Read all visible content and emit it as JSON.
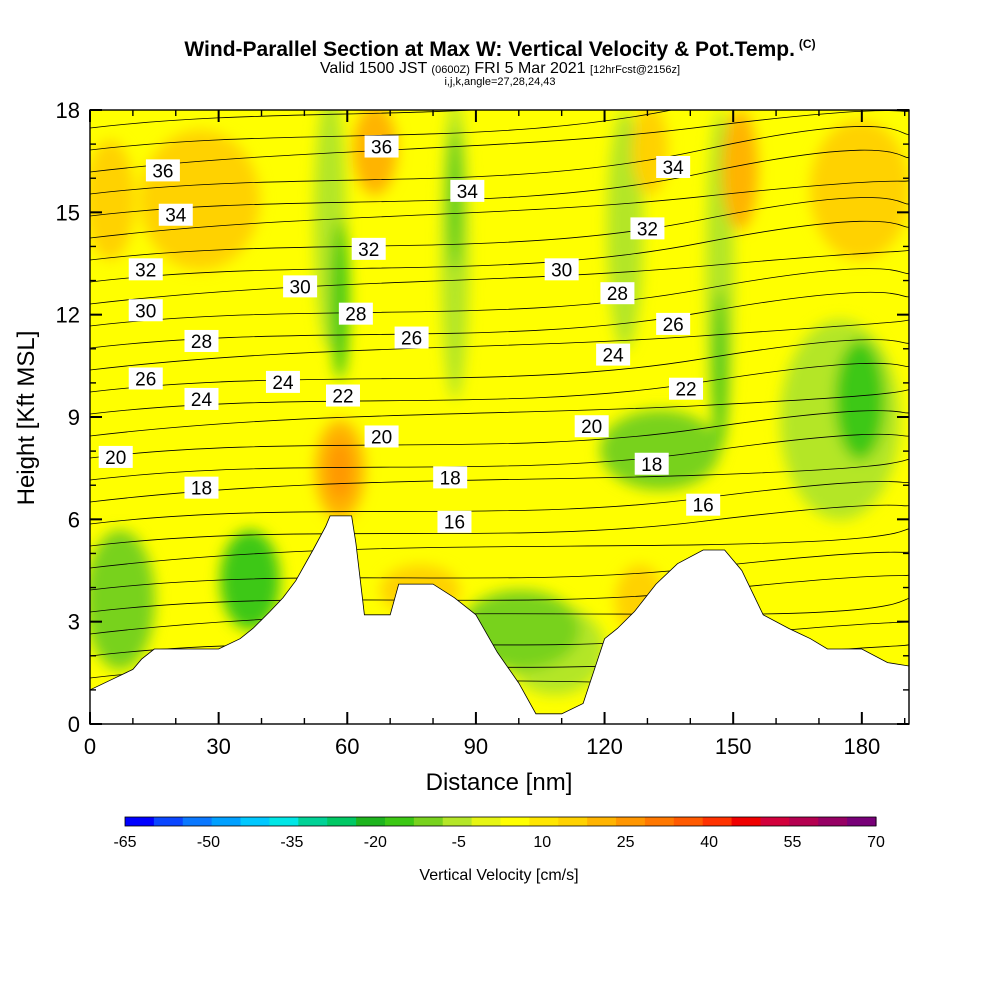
{
  "header": {
    "title": "Wind-Parallel Section at Max W: Vertical Velocity & Pot.Temp.",
    "copyright": "(C)",
    "valid_prefix": "Valid 1500 JST",
    "valid_utc": "(0600Z)",
    "valid_date": "FRI 5 Mar 2021",
    "forecast": "[12hrFcst@2156z]",
    "indices": "i,j,k,angle=27,28,24,43"
  },
  "chart_data": {
    "type": "heatmap",
    "xlabel": "Distance [nm]",
    "ylabel": "Height [Kft MSL]",
    "xlim": [
      0,
      191
    ],
    "ylim": [
      0,
      18
    ],
    "x_ticks": [
      "0",
      "30",
      "60",
      "90",
      "120",
      "150",
      "180"
    ],
    "y_ticks": [
      "0",
      "3",
      "6",
      "9",
      "12",
      "15",
      "18"
    ],
    "colorbar": {
      "label": "Vertical Velocity [cm/s]",
      "tick_labels": [
        "-65",
        "-50",
        "-35",
        "-20",
        "-5",
        "10",
        "25",
        "40",
        "55",
        "70"
      ],
      "colors": [
        "#0000ff",
        "#0a46ff",
        "#0a78ff",
        "#00a0ff",
        "#00c8ff",
        "#00e6e6",
        "#00d296",
        "#00c864",
        "#1eb41e",
        "#3cc814",
        "#78d21e",
        "#b4e628",
        "#e6f514",
        "#ffff00",
        "#ffe600",
        "#ffd200",
        "#ffb400",
        "#ff9600",
        "#ff7800",
        "#ff5a00",
        "#ff3200",
        "#f00000",
        "#d2003c",
        "#b40050",
        "#960064",
        "#780078"
      ]
    },
    "terrain_height_kft": [
      [
        0,
        1.0
      ],
      [
        5,
        1.3
      ],
      [
        10,
        1.6
      ],
      [
        12,
        1.9
      ],
      [
        15,
        2.2
      ],
      [
        30,
        2.2
      ],
      [
        35,
        2.5
      ],
      [
        38,
        2.8
      ],
      [
        42,
        3.3
      ],
      [
        45,
        3.7
      ],
      [
        48,
        4.2
      ],
      [
        52,
        5.1
      ],
      [
        55,
        5.8
      ],
      [
        56,
        6.1
      ],
      [
        61,
        6.1
      ],
      [
        62,
        5.3
      ],
      [
        64,
        3.2
      ],
      [
        70,
        3.2
      ],
      [
        72,
        4.1
      ],
      [
        80,
        4.1
      ],
      [
        85,
        3.7
      ],
      [
        90,
        3.2
      ],
      [
        95,
        2.1
      ],
      [
        100,
        1.2
      ],
      [
        104,
        0.3
      ],
      [
        110,
        0.3
      ],
      [
        115,
        0.6
      ],
      [
        120,
        2.5
      ],
      [
        123,
        2.8
      ],
      [
        127,
        3.3
      ],
      [
        132,
        4.1
      ],
      [
        137,
        4.7
      ],
      [
        143,
        5.1
      ],
      [
        148,
        5.1
      ],
      [
        152,
        4.5
      ],
      [
        157,
        3.2
      ],
      [
        163,
        2.8
      ],
      [
        168,
        2.5
      ],
      [
        172,
        2.2
      ],
      [
        180,
        2.2
      ],
      [
        186,
        1.8
      ],
      [
        191,
        1.7
      ]
    ],
    "contour_labels": [
      {
        "text": "36",
        "x": 17,
        "y": 16.2
      },
      {
        "text": "34",
        "x": 20,
        "y": 14.9
      },
      {
        "text": "32",
        "x": 13,
        "y": 13.3
      },
      {
        "text": "30",
        "x": 13,
        "y": 12.1
      },
      {
        "text": "28",
        "x": 26,
        "y": 11.2
      },
      {
        "text": "26",
        "x": 13,
        "y": 10.1
      },
      {
        "text": "24",
        "x": 26,
        "y": 9.5
      },
      {
        "text": "20",
        "x": 6,
        "y": 7.8
      },
      {
        "text": "18",
        "x": 26,
        "y": 6.9
      },
      {
        "text": "24",
        "x": 45,
        "y": 10.0
      },
      {
        "text": "30",
        "x": 49,
        "y": 12.8
      },
      {
        "text": "22",
        "x": 59,
        "y": 9.6
      },
      {
        "text": "28",
        "x": 62,
        "y": 12.0
      },
      {
        "text": "32",
        "x": 65,
        "y": 13.9
      },
      {
        "text": "36",
        "x": 68,
        "y": 16.9
      },
      {
        "text": "20",
        "x": 68,
        "y": 8.4
      },
      {
        "text": "26",
        "x": 75,
        "y": 11.3
      },
      {
        "text": "34",
        "x": 88,
        "y": 15.6
      },
      {
        "text": "18",
        "x": 84,
        "y": 7.2
      },
      {
        "text": "16",
        "x": 85,
        "y": 5.9
      },
      {
        "text": "30",
        "x": 110,
        "y": 13.3
      },
      {
        "text": "20",
        "x": 117,
        "y": 8.7
      },
      {
        "text": "24",
        "x": 122,
        "y": 10.8
      },
      {
        "text": "28",
        "x": 123,
        "y": 12.6
      },
      {
        "text": "32",
        "x": 130,
        "y": 14.5
      },
      {
        "text": "34",
        "x": 136,
        "y": 16.3
      },
      {
        "text": "18",
        "x": 131,
        "y": 7.6
      },
      {
        "text": "26",
        "x": 136,
        "y": 11.7
      },
      {
        "text": "22",
        "x": 139,
        "y": 9.8
      },
      {
        "text": "16",
        "x": 143,
        "y": 6.4
      }
    ]
  }
}
